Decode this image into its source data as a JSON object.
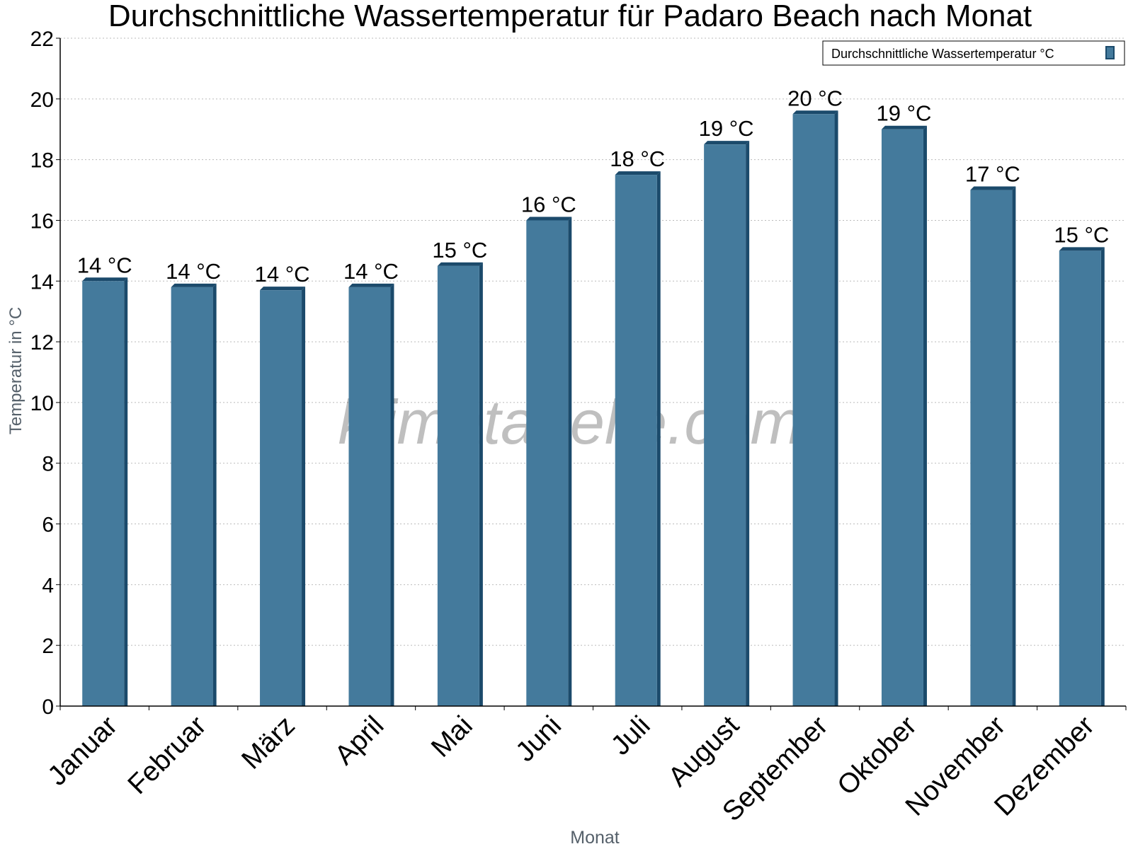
{
  "chart_data": {
    "type": "bar",
    "title": "Durchschnittliche Wassertemperatur für Padaro Beach nach Monat",
    "xlabel": "Monat",
    "ylabel": "Temperatur in °C",
    "categories": [
      "Januar",
      "Februar",
      "März",
      "April",
      "Mai",
      "Juni",
      "Juli",
      "August",
      "September",
      "Oktober",
      "November",
      "Dezember"
    ],
    "series": [
      {
        "name": "Durchschnittliche Wassertemperatur °C",
        "values": [
          14.0,
          13.8,
          13.7,
          13.8,
          14.5,
          16.0,
          17.5,
          18.5,
          19.5,
          19.0,
          17.0,
          15.0
        ],
        "labels": [
          "14 °C",
          "14 °C",
          "14 °C",
          "14 °C",
          "15 °C",
          "16 °C",
          "18 °C",
          "19 °C",
          "20 °C",
          "19 °C",
          "17 °C",
          "15 °C"
        ],
        "color": "#447a9c",
        "edge_color": "#1b4a6b"
      }
    ],
    "ylim": [
      0,
      22
    ],
    "yticks": [
      "0",
      "2",
      "4",
      "6",
      "8",
      "10",
      "12",
      "14",
      "16",
      "18",
      "20",
      "22"
    ],
    "grid": true,
    "legend_position": "top-right",
    "watermark": "klimatabelle.com"
  }
}
